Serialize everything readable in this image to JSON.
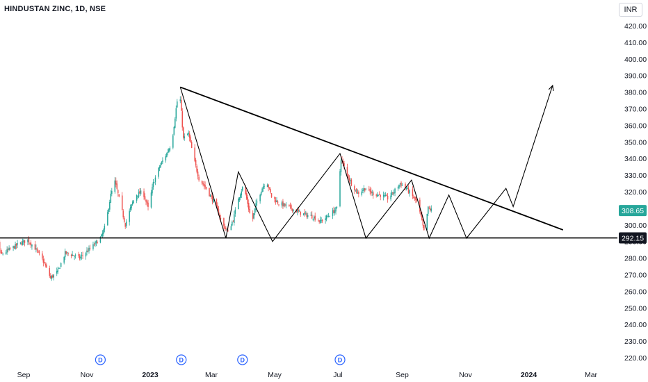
{
  "header": {
    "title": "HINDUSTAN ZINC, 1D, NSE",
    "currency": "INR"
  },
  "colors": {
    "up": "#26a69a",
    "down": "#ef5350",
    "drawing": "#000000",
    "last_price_tag": "#26a69a",
    "level_tag": "#131722",
    "dividend": "#2962ff"
  },
  "chart_data": {
    "type": "candlestick",
    "symbol": "HINDUSTAN ZINC",
    "interval": "1D",
    "exchange": "NSE",
    "ylim": [
      215,
      425
    ],
    "y_ticks": [
      220,
      230,
      240,
      250,
      260,
      270,
      280,
      290,
      300,
      310,
      320,
      330,
      340,
      350,
      360,
      370,
      380,
      390,
      400,
      410,
      420
    ],
    "x_ticks": [
      "Sep",
      "Nov",
      "2023",
      "Mar",
      "May",
      "Jul",
      "Sep",
      "Nov",
      "2024",
      "Mar"
    ],
    "x_tick_dates": [
      "2022-09-01",
      "2022-11-01",
      "2023-01-01",
      "2023-03-01",
      "2023-05-01",
      "2023-07-01",
      "2023-09-01",
      "2023-11-01",
      "2024-01-01",
      "2024-03-01"
    ],
    "last_price": "308.65",
    "horizontal_level": "292.15",
    "dividend_marker": "D",
    "dividend_dates": [
      "2022-11-14",
      "2023-01-31",
      "2023-03-31",
      "2023-07-03"
    ],
    "price_path": [
      [
        "2022-07-25",
        272
      ],
      [
        "2022-08-01",
        278
      ],
      [
        "2022-08-05",
        300
      ],
      [
        "2022-08-10",
        282
      ],
      [
        "2022-08-18",
        285
      ],
      [
        "2022-08-26",
        288
      ],
      [
        "2022-09-05",
        291
      ],
      [
        "2022-09-12",
        286
      ],
      [
        "2022-09-20",
        278
      ],
      [
        "2022-09-27",
        268
      ],
      [
        "2022-10-04",
        272
      ],
      [
        "2022-10-11",
        283
      ],
      [
        "2022-10-18",
        282
      ],
      [
        "2022-10-25",
        280
      ],
      [
        "2022-11-01",
        284
      ],
      [
        "2022-11-08",
        288
      ],
      [
        "2022-11-15",
        293
      ],
      [
        "2022-11-19",
        300
      ],
      [
        "2022-11-24",
        318
      ],
      [
        "2022-11-28",
        326
      ],
      [
        "2022-12-02",
        316
      ],
      [
        "2022-12-08",
        300
      ],
      [
        "2022-12-13",
        310
      ],
      [
        "2022-12-18",
        318
      ],
      [
        "2022-12-25",
        320
      ],
      [
        "2022-12-30",
        310
      ],
      [
        "2023-01-04",
        325
      ],
      [
        "2023-01-10",
        335
      ],
      [
        "2023-01-17",
        343
      ],
      [
        "2023-01-22",
        350
      ],
      [
        "2023-01-26",
        370
      ],
      [
        "2023-01-29",
        383
      ],
      [
        "2023-02-02",
        352
      ],
      [
        "2023-02-07",
        355
      ],
      [
        "2023-02-12",
        340
      ],
      [
        "2023-02-17",
        328
      ],
      [
        "2023-02-24",
        322
      ],
      [
        "2023-03-05",
        312
      ],
      [
        "2023-03-12",
        300
      ],
      [
        "2023-03-17",
        296
      ],
      [
        "2023-03-22",
        303
      ],
      [
        "2023-03-27",
        316
      ],
      [
        "2023-04-01",
        324
      ],
      [
        "2023-04-05",
        313
      ],
      [
        "2023-04-09",
        301
      ],
      [
        "2023-04-13",
        312
      ],
      [
        "2023-04-18",
        321
      ],
      [
        "2023-04-23",
        327
      ],
      [
        "2023-04-28",
        317
      ],
      [
        "2023-05-05",
        313
      ],
      [
        "2023-05-14",
        311
      ],
      [
        "2023-05-23",
        308
      ],
      [
        "2023-05-31",
        306
      ],
      [
        "2023-06-07",
        305
      ],
      [
        "2023-06-14",
        302
      ],
      [
        "2023-06-21",
        305
      ],
      [
        "2023-06-30",
        310
      ],
      [
        "2023-07-04",
        340
      ],
      [
        "2023-07-08",
        333
      ],
      [
        "2023-07-14",
        325
      ],
      [
        "2023-07-20",
        319
      ],
      [
        "2023-07-27",
        322
      ],
      [
        "2023-08-03",
        319
      ],
      [
        "2023-08-11",
        318
      ],
      [
        "2023-08-18",
        316
      ],
      [
        "2023-08-24",
        320
      ],
      [
        "2023-08-30",
        325
      ],
      [
        "2023-09-05",
        322
      ],
      [
        "2023-09-10",
        318
      ],
      [
        "2023-09-15",
        314
      ],
      [
        "2023-09-19",
        305
      ],
      [
        "2023-09-22",
        296
      ],
      [
        "2023-09-26",
        310
      ],
      [
        "2023-09-29",
        309
      ]
    ],
    "drawings": {
      "descending_trendline": [
        [
          "2023-01-30",
          383
        ],
        [
          "2024-02-03",
          297
        ]
      ],
      "support_line": 292.15,
      "zigzag_path": [
        [
          "2023-01-30",
          383
        ],
        [
          "2023-03-15",
          292
        ],
        [
          "2023-03-27",
          332
        ],
        [
          "2023-04-29",
          290
        ],
        [
          "2023-07-03",
          343
        ],
        [
          "2023-07-28",
          292
        ],
        [
          "2023-09-10",
          327
        ],
        [
          "2023-09-27",
          292
        ],
        [
          "2023-10-16",
          318
        ],
        [
          "2023-11-02",
          292
        ],
        [
          "2023-12-10",
          322
        ],
        [
          "2023-12-17",
          311
        ],
        [
          "2024-01-24",
          384
        ]
      ],
      "arrow_end": [
        "2024-01-24",
        384
      ]
    }
  }
}
